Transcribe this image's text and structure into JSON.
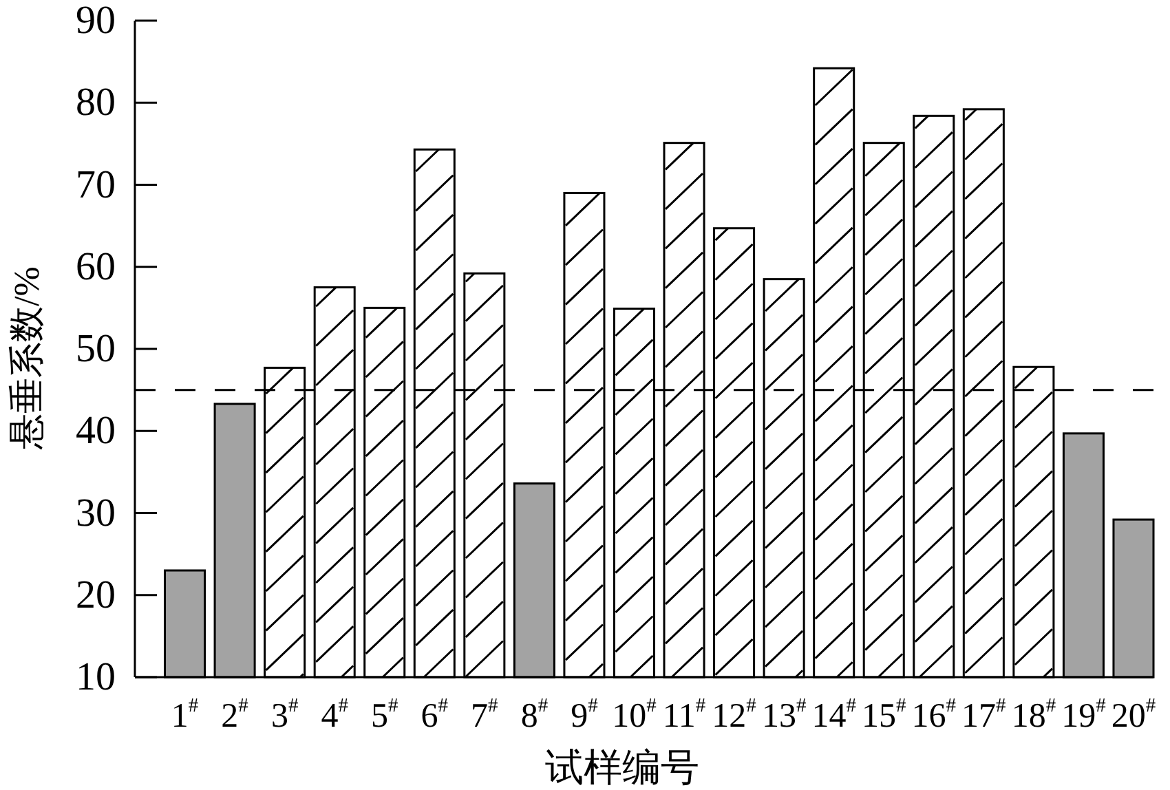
{
  "chart_data": {
    "type": "bar",
    "xlabel": "试样编号",
    "ylabel": "悬垂系数/%",
    "categories": [
      "1$^{#}$",
      "2$^{#}$",
      "3$^{#}$",
      "4$^{#}$",
      "5$^{#}$",
      "6$^{#}$",
      "7$^{#}$",
      "8$^{#}$",
      "9$^{#}$",
      "10$^{#}$",
      "11$^{#}$",
      "12$^{#}$",
      "13$^{#}$",
      "14$^{#}$",
      "15$^{#}$",
      "16$^{#}$",
      "17$^{#}$",
      "18$^{#}$",
      "19$^{#}$",
      "20$^{#}$"
    ],
    "values": [
      23.0,
      43.3,
      47.7,
      57.5,
      55.0,
      74.3,
      59.2,
      33.6,
      69.0,
      54.9,
      75.1,
      64.7,
      58.5,
      84.2,
      75.1,
      78.4,
      79.2,
      47.8,
      39.7,
      29.2
    ],
    "colors": [
      "#a3a3a3",
      "#a3a3a3",
      "#ffffff",
      "#ffffff",
      "#ffffff",
      "#ffffff",
      "#ffffff",
      "#a3a3a3",
      "#ffffff",
      "#ffffff",
      "#ffffff",
      "#ffffff",
      "#ffffff",
      "#ffffff",
      "#ffffff",
      "#ffffff",
      "#ffffff",
      "#ffffff",
      "#a3a3a3",
      "#a3a3a3"
    ],
    "ylim": [
      10,
      90
    ],
    "yticks": [
      10,
      20,
      30,
      40,
      50,
      60,
      70,
      80,
      90
    ],
    "ref_lines": [
      {
        "axis": "y",
        "value": 45,
        "line_style": "dashed",
        "color": "#000000"
      }
    ]
  }
}
